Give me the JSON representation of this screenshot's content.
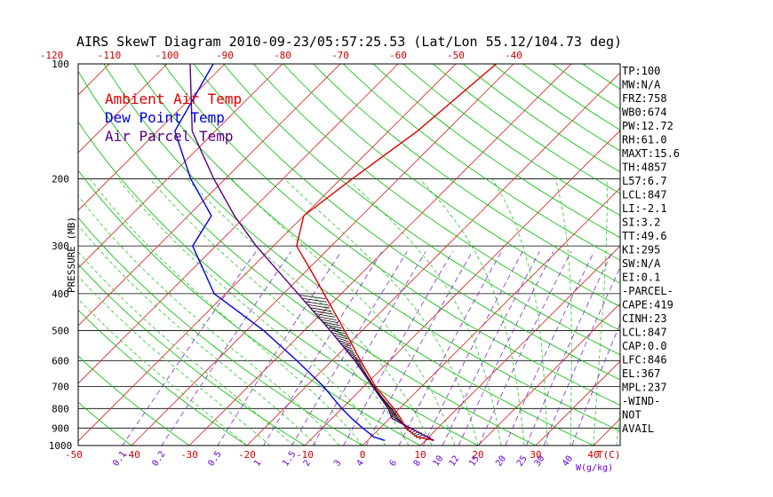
{
  "colors": {
    "temp": "#e00000",
    "dewpoint": "#0000dd",
    "parcel": "#5a0080",
    "isotherm": "#dd2222",
    "dry_adiabat": "#00bb00",
    "moist_adiabat": "#22cc22",
    "mixing_ratio": "#7a2ad0",
    "isobar": "#000000"
  },
  "chart_data": {
    "type": "line",
    "title": "AIRS SkewT Diagram 2010-09-23/05:57:25.53 (Lat/Lon 55.12/104.73 deg)",
    "ylabel": "PRESSURE (MB)",
    "xlabel": "T(C)",
    "mixing_ratio_unit": "W(g/kg)",
    "pressure_levels": [
      100,
      200,
      300,
      400,
      500,
      600,
      700,
      800,
      900,
      1000
    ],
    "pressure_tick_labels": [
      "100",
      "200",
      "300",
      "400",
      "500",
      "600",
      "700",
      "800",
      "900",
      "1000"
    ],
    "ylim": [
      1000,
      100
    ],
    "top_temp_ticks": [
      -120,
      -110,
      -100,
      -90,
      -80,
      -70,
      -60,
      -50,
      -40
    ],
    "top_temp_tick_labels": [
      "-120",
      "-110",
      "-100",
      "-90",
      "-80",
      "-70",
      "-60",
      "-50",
      "-40"
    ],
    "bottom_temp_ticks": [
      -50,
      -40,
      -30,
      -20,
      -10,
      0,
      10,
      20,
      30,
      40
    ],
    "bottom_temp_tick_labels": [
      "-50",
      "-40",
      "-30",
      "-20",
      "-10",
      "0",
      "10",
      "20",
      "30",
      "40"
    ],
    "mixing_ratio_ticks": [
      0.1,
      0.2,
      0.5,
      1,
      1.5,
      2,
      3,
      4,
      6,
      8,
      10,
      12,
      15,
      20,
      25,
      30,
      40
    ],
    "mixing_ratio_tick_labels": [
      "0.1",
      "0.2",
      "0.5",
      "1",
      "1.5",
      "2",
      "3",
      "4",
      "6",
      "8",
      "10",
      "12",
      "15",
      "20",
      "25",
      "30",
      "40"
    ],
    "legend": [
      {
        "name": "Ambient Air Temp",
        "color": "#e00000"
      },
      {
        "name": "Dew Point Temp",
        "color": "#0000dd"
      },
      {
        "name": "Air Parcel Temp",
        "color": "#5a0080"
      }
    ],
    "series": [
      {
        "name": "Ambient Air Temp",
        "points": [
          {
            "p": 970,
            "t": 11.5
          },
          {
            "p": 950,
            "t": 8.0
          },
          {
            "p": 900,
            "t": 4.5
          },
          {
            "p": 850,
            "t": 2.0
          },
          {
            "p": 800,
            "t": -1.0
          },
          {
            "p": 700,
            "t": -8.0
          },
          {
            "p": 600,
            "t": -15.0
          },
          {
            "p": 500,
            "t": -23.0
          },
          {
            "p": 400,
            "t": -33.0
          },
          {
            "p": 350,
            "t": -39.0
          },
          {
            "p": 300,
            "t": -46.0
          },
          {
            "p": 250,
            "t": -50.0
          },
          {
            "p": 200,
            "t": -48.0
          },
          {
            "p": 150,
            "t": -45.0
          },
          {
            "p": 100,
            "t": -43.0
          }
        ]
      },
      {
        "name": "Dew Point Temp",
        "points": [
          {
            "p": 970,
            "t": 3.0
          },
          {
            "p": 950,
            "t": 0.5
          },
          {
            "p": 900,
            "t": -3.0
          },
          {
            "p": 850,
            "t": -6.5
          },
          {
            "p": 800,
            "t": -10.0
          },
          {
            "p": 700,
            "t": -17.0
          },
          {
            "p": 600,
            "t": -26.0
          },
          {
            "p": 500,
            "t": -37.0
          },
          {
            "p": 400,
            "t": -52.0
          },
          {
            "p": 300,
            "t": -64.0
          },
          {
            "p": 250,
            "t": -66.0
          },
          {
            "p": 200,
            "t": -76.0
          },
          {
            "p": 150,
            "t": -87.0
          },
          {
            "p": 100,
            "t": -92.0
          }
        ]
      },
      {
        "name": "Air Parcel Temp",
        "points": [
          {
            "p": 970,
            "t": 11.5
          },
          {
            "p": 850,
            "t": 0.5
          },
          {
            "p": 800,
            "t": -2.0
          },
          {
            "p": 700,
            "t": -8.5
          },
          {
            "p": 600,
            "t": -16.0
          },
          {
            "p": 500,
            "t": -25.5
          },
          {
            "p": 400,
            "t": -37.5
          },
          {
            "p": 300,
            "t": -53.0
          },
          {
            "p": 250,
            "t": -62.0
          },
          {
            "p": 200,
            "t": -72.0
          },
          {
            "p": 150,
            "t": -84.0
          },
          {
            "p": 100,
            "t": -96.0
          }
        ]
      }
    ]
  },
  "indices": [
    "TP:100",
    "MW:N/A",
    "FRZ:758",
    "WB0:674",
    "PW:12.72",
    "RH:61.0",
    "MAXT:15.6",
    "TH:4857",
    "L57:6.7",
    "LCL:847",
    "LI:-2.1",
    "SI:3.2",
    "TT:49.6",
    "KI:295",
    "SW:N/A",
    "EI:0.1",
    "-PARCEL-",
    "CAPE:419",
    "CINH:23",
    "LCL:847",
    "CAP:0.0",
    "LFC:846",
    "EL:367",
    "MPL:237",
    "-WIND-",
    "NOT",
    "AVAIL"
  ]
}
